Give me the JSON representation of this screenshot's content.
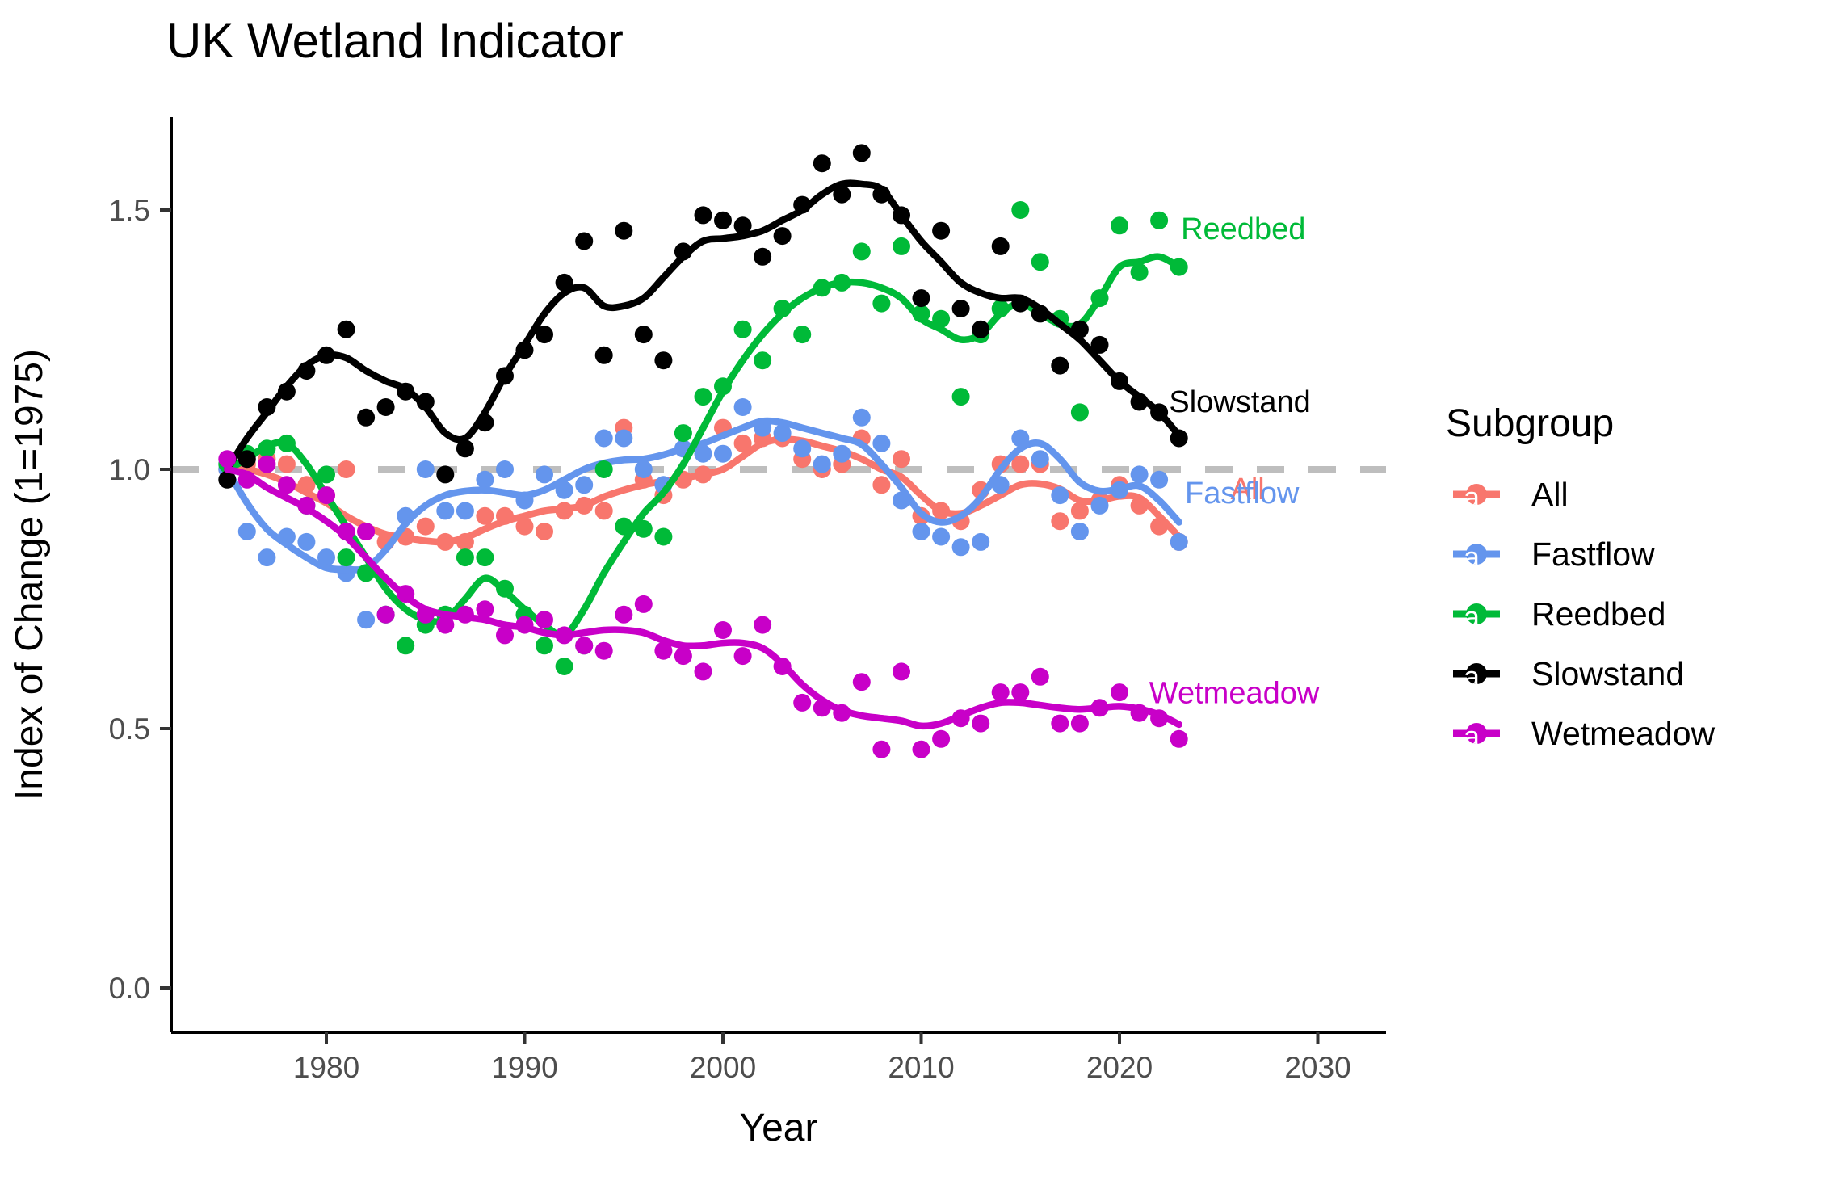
{
  "chart_data": {
    "type": "scatter",
    "title": "UK Wetland Indicator",
    "xlabel": "Year",
    "ylabel": "Index of Change (1=1975)",
    "x_ticks": [
      1980,
      1990,
      2000,
      2010,
      2020,
      2030
    ],
    "y_ticks": [
      {
        "label": "0.0",
        "value": 0.0
      },
      {
        "label": "0.5",
        "value": 0.5
      },
      {
        "label": "1.0",
        "value": 1.0
      },
      {
        "label": "1.5",
        "value": 1.5
      }
    ],
    "x_range_years": [
      1973.2,
      2033.4
    ],
    "y_range": [
      -0.09,
      1.68
    ],
    "grid": "off",
    "reference_line_y": 1.0,
    "reference_line_color": "#BEBEBE",
    "axis_color": "#000000",
    "tick_color": "#333333",
    "axis_text_color": "#4D4D4D",
    "legend_position": "right",
    "legend_title": "Subgroup",
    "start_year": 1975,
    "series": [
      {
        "name": "All",
        "color": "#F8766D",
        "points": [
          1.0,
          1.01,
          1.02,
          1.01,
          0.97,
          0.95,
          1.0,
          0.88,
          0.86,
          0.87,
          0.89,
          0.86,
          0.86,
          0.91,
          0.91,
          0.89,
          0.88,
          0.92,
          0.93,
          0.92,
          1.08,
          0.98,
          0.95,
          0.98,
          0.99,
          1.08,
          1.05,
          1.06,
          1.06,
          1.02,
          1.0,
          1.01,
          1.06,
          0.97,
          1.02,
          0.91,
          0.92,
          0.9,
          0.96,
          1.01,
          1.01,
          1.01,
          0.9,
          0.92,
          0.94,
          0.97,
          0.93,
          0.89,
          0.86
        ],
        "smooth": [
          1.0,
          1.0,
          0.99,
          0.975,
          0.955,
          0.935,
          0.91,
          0.89,
          0.875,
          0.868,
          0.862,
          0.86,
          0.868,
          0.885,
          0.9,
          0.91,
          0.92,
          0.924,
          0.93,
          0.947,
          0.96,
          0.97,
          0.977,
          0.983,
          0.99,
          1.0,
          1.025,
          1.05,
          1.058,
          1.055,
          1.045,
          1.035,
          1.02,
          1.0,
          0.985,
          0.95,
          0.92,
          0.915,
          0.93,
          0.95,
          0.97,
          0.972,
          0.962,
          0.94,
          0.94,
          0.948,
          0.945,
          0.91,
          0.87
        ]
      },
      {
        "name": "Fastflow",
        "color": "#6495ED",
        "points": [
          1.0,
          0.88,
          0.83,
          0.87,
          0.86,
          0.83,
          0.8,
          0.71,
          0.72,
          0.91,
          1.0,
          0.92,
          0.92,
          0.98,
          1.0,
          0.94,
          0.99,
          0.96,
          0.97,
          1.06,
          1.06,
          1.0,
          0.97,
          1.04,
          1.03,
          1.03,
          1.12,
          1.08,
          1.07,
          1.04,
          1.01,
          1.03,
          1.1,
          1.05,
          0.94,
          0.88,
          0.87,
          0.85,
          0.86,
          0.97,
          1.06,
          1.02,
          0.95,
          0.88,
          0.93,
          0.96,
          0.99,
          0.98,
          0.86
        ],
        "smooth": [
          1.0,
          0.935,
          0.885,
          0.855,
          0.83,
          0.81,
          0.807,
          0.81,
          0.845,
          0.895,
          0.93,
          0.95,
          0.958,
          0.96,
          0.955,
          0.95,
          0.96,
          0.98,
          1.0,
          1.012,
          1.018,
          1.02,
          1.028,
          1.04,
          1.05,
          1.065,
          1.08,
          1.093,
          1.09,
          1.08,
          1.07,
          1.06,
          1.048,
          1.01,
          0.965,
          0.915,
          0.898,
          0.91,
          0.945,
          1.0,
          1.04,
          1.05,
          1.02,
          0.975,
          0.958,
          0.962,
          0.968,
          0.94,
          0.898
        ]
      },
      {
        "name": "Reedbed",
        "color": "#00BA38",
        "points": [
          1.01,
          1.03,
          1.04,
          1.05,
          0.93,
          0.99,
          0.83,
          0.8,
          0.72,
          0.66,
          0.7,
          0.72,
          0.83,
          0.83,
          0.77,
          0.72,
          0.66,
          0.62,
          0.66,
          1.0,
          0.89,
          0.885,
          0.87,
          1.07,
          1.14,
          1.16,
          1.27,
          1.21,
          1.31,
          1.26,
          1.35,
          1.36,
          1.42,
          1.32,
          1.43,
          1.3,
          1.29,
          1.14,
          1.26,
          1.31,
          1.5,
          1.4,
          1.29,
          1.11,
          1.33,
          1.47,
          1.38,
          1.48,
          1.39
        ],
        "smooth": [
          1.0,
          1.02,
          1.045,
          1.05,
          1.01,
          0.95,
          0.89,
          0.83,
          0.77,
          0.73,
          0.71,
          0.71,
          0.75,
          0.79,
          0.765,
          0.73,
          0.7,
          0.68,
          0.73,
          0.8,
          0.86,
          0.915,
          0.955,
          1.01,
          1.08,
          1.15,
          1.21,
          1.26,
          1.3,
          1.33,
          1.35,
          1.36,
          1.36,
          1.35,
          1.33,
          1.29,
          1.27,
          1.25,
          1.26,
          1.3,
          1.32,
          1.3,
          1.28,
          1.28,
          1.33,
          1.39,
          1.4,
          1.41,
          1.39
        ]
      },
      {
        "name": "Slowstand",
        "color": "#000000",
        "points": [
          0.98,
          1.02,
          1.12,
          1.15,
          1.19,
          1.22,
          1.27,
          1.1,
          1.12,
          1.15,
          1.13,
          0.99,
          1.04,
          1.09,
          1.18,
          1.23,
          1.26,
          1.36,
          1.44,
          1.22,
          1.46,
          1.26,
          1.21,
          1.42,
          1.49,
          1.48,
          1.47,
          1.41,
          1.45,
          1.51,
          1.59,
          1.53,
          1.61,
          1.53,
          1.49,
          1.33,
          1.46,
          1.31,
          1.27,
          1.43,
          1.32,
          1.3,
          1.2,
          1.27,
          1.24,
          1.17,
          1.13,
          1.11,
          1.06
        ],
        "smooth": [
          1.0,
          1.06,
          1.11,
          1.16,
          1.2,
          1.22,
          1.215,
          1.19,
          1.17,
          1.155,
          1.12,
          1.07,
          1.06,
          1.11,
          1.18,
          1.24,
          1.3,
          1.34,
          1.35,
          1.315,
          1.315,
          1.33,
          1.37,
          1.41,
          1.44,
          1.445,
          1.45,
          1.46,
          1.48,
          1.5,
          1.53,
          1.55,
          1.55,
          1.54,
          1.49,
          1.44,
          1.4,
          1.36,
          1.34,
          1.33,
          1.33,
          1.31,
          1.28,
          1.25,
          1.21,
          1.17,
          1.14,
          1.11,
          1.065
        ]
      },
      {
        "name": "Wetmeadow",
        "color": "#C800C8",
        "points": [
          1.02,
          0.98,
          1.01,
          0.97,
          0.93,
          0.95,
          0.88,
          0.88,
          0.72,
          0.76,
          0.72,
          0.7,
          0.72,
          0.73,
          0.68,
          0.7,
          0.71,
          0.68,
          0.66,
          0.65,
          0.72,
          0.74,
          0.65,
          0.64,
          0.61,
          0.69,
          0.64,
          0.7,
          0.62,
          0.55,
          0.54,
          0.53,
          0.59,
          0.46,
          0.61,
          0.46,
          0.48,
          0.52,
          0.51,
          0.57,
          0.57,
          0.6,
          0.51,
          0.51,
          0.54,
          0.57,
          0.53,
          0.52,
          0.48
        ],
        "smooth": [
          1.0,
          0.99,
          0.965,
          0.945,
          0.925,
          0.9,
          0.87,
          0.83,
          0.79,
          0.755,
          0.73,
          0.72,
          0.715,
          0.71,
          0.7,
          0.695,
          0.685,
          0.68,
          0.685,
          0.69,
          0.69,
          0.685,
          0.67,
          0.66,
          0.66,
          0.665,
          0.665,
          0.655,
          0.625,
          0.585,
          0.555,
          0.535,
          0.525,
          0.52,
          0.515,
          0.505,
          0.51,
          0.525,
          0.54,
          0.55,
          0.55,
          0.545,
          0.54,
          0.537,
          0.54,
          0.543,
          0.538,
          0.527,
          0.508
        ]
      }
    ],
    "annotations": [
      {
        "text": "Reedbed",
        "year": 2023.1,
        "value": 1.464,
        "color": "#00BA38"
      },
      {
        "text": "Slowstand",
        "year": 2022.5,
        "value": 1.131,
        "color": "#000000"
      },
      {
        "text": "All",
        "year": 2025.6,
        "value": 0.963,
        "color": "#F8766D"
      },
      {
        "text": "Fastflow",
        "year": 2023.3,
        "value": 0.955,
        "color": "#6495ED"
      },
      {
        "text": "Wetmeadow",
        "year": 2021.5,
        "value": 0.569,
        "color": "#C800C8"
      }
    ]
  }
}
